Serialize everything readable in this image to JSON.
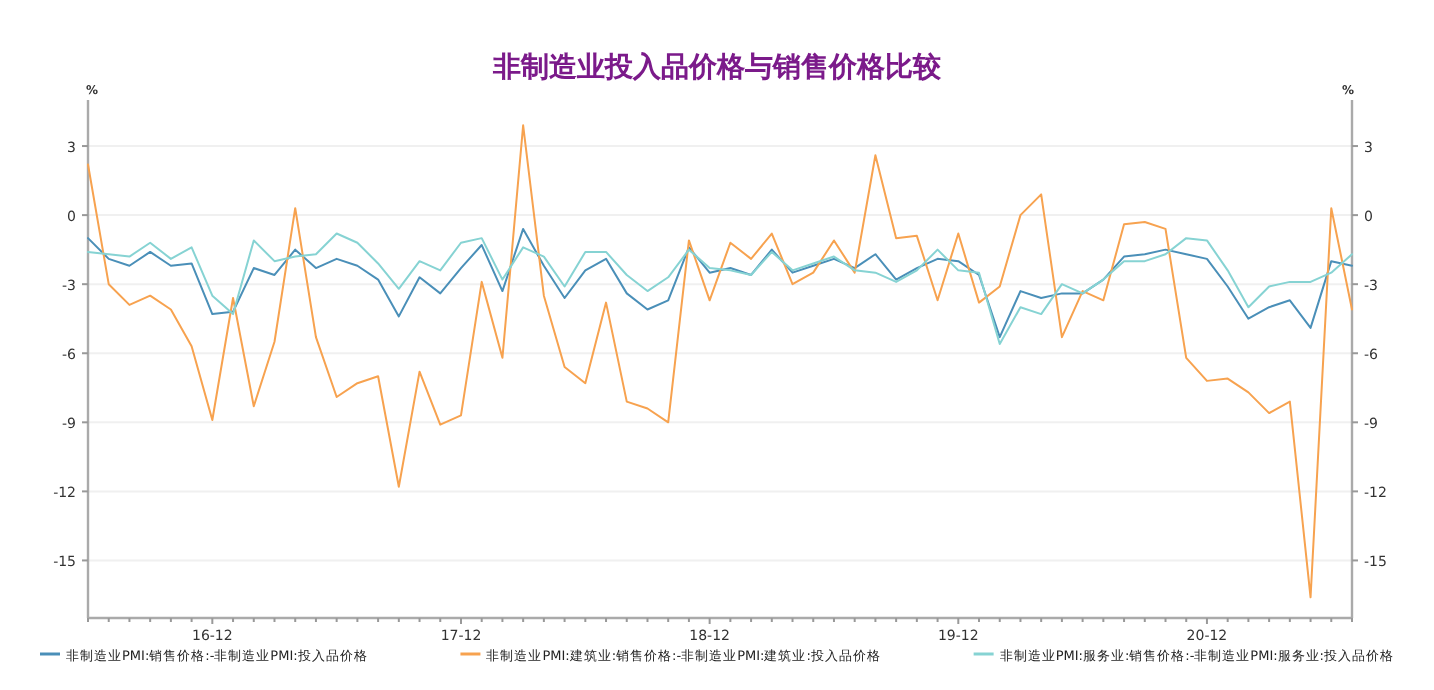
{
  "chart_data": {
    "type": "line",
    "title": "非制造业投入品价格与销售价格比较",
    "categories": [
      null,
      null,
      null,
      null,
      null,
      null,
      "16-12",
      null,
      null,
      null,
      null,
      null,
      null,
      null,
      null,
      null,
      null,
      null,
      "17-12",
      null,
      null,
      null,
      null,
      null,
      null,
      null,
      null,
      null,
      null,
      null,
      "18-12",
      null,
      null,
      null,
      null,
      null,
      null,
      null,
      null,
      null,
      null,
      null,
      "19-12",
      null,
      null,
      null,
      null,
      null,
      null,
      null,
      null,
      null,
      null,
      null,
      "20-12",
      null,
      null,
      null,
      null,
      null,
      null,
      null
    ],
    "series": [
      {
        "name": "非制造业PMI:销售价格:-非制造业PMI:投入品价格",
        "color": "#4a8fb8",
        "values": [
          -1.0,
          -1.9,
          -2.2,
          -1.6,
          -2.2,
          -2.1,
          -4.3,
          -4.2,
          -2.3,
          -2.6,
          -1.5,
          -2.3,
          -1.9,
          -2.2,
          -2.8,
          -4.4,
          -2.7,
          -3.4,
          -2.3,
          -1.3,
          -3.3,
          -0.6,
          -2.2,
          -3.6,
          -2.4,
          -1.9,
          -3.4,
          -4.1,
          -3.7,
          -1.4,
          -2.5,
          -2.3,
          -2.6,
          -1.5,
          -2.5,
          -2.2,
          -1.9,
          -2.3,
          -1.7,
          -2.8,
          -2.3,
          -1.9,
          -2.0,
          -2.6,
          -5.3,
          -3.3,
          -3.6,
          -3.4,
          -3.4,
          -2.8,
          -1.8,
          -1.7,
          -1.5,
          -1.7,
          -1.9,
          -3.1,
          -4.5,
          -4.0,
          -3.7,
          -4.9,
          -2.0,
          -2.2
        ]
      },
      {
        "name": "非制造业PMI:建筑业:销售价格:-非制造业PMI:建筑业:投入品价格",
        "color": "#f7a24f",
        "values": [
          2.2,
          -3.0,
          -3.9,
          -3.5,
          -4.1,
          -5.7,
          -8.9,
          -3.6,
          -8.3,
          -5.5,
          0.3,
          -5.3,
          -7.9,
          -7.3,
          -7.0,
          -11.8,
          -6.8,
          -9.1,
          -8.7,
          -2.9,
          -6.2,
          3.9,
          -3.5,
          -6.6,
          -7.3,
          -3.8,
          -8.1,
          -8.4,
          -9.0,
          -1.1,
          -3.7,
          -1.2,
          -1.9,
          -0.8,
          -3.0,
          -2.5,
          -1.1,
          -2.5,
          2.6,
          -1.0,
          -0.9,
          -3.7,
          -0.8,
          -3.8,
          -3.1,
          0.0,
          0.9,
          -5.3,
          -3.3,
          -3.7,
          -0.4,
          -0.3,
          -0.6,
          -6.2,
          -7.2,
          -7.1,
          -7.7,
          -8.6,
          -8.1,
          -16.6,
          0.3,
          -4.1
        ]
      },
      {
        "name": "非制造业PMI:服务业:销售价格:-非制造业PMI:服务业:投入品价格",
        "color": "#86d3d3",
        "values": [
          -1.6,
          -1.7,
          -1.8,
          -1.2,
          -1.9,
          -1.4,
          -3.5,
          -4.3,
          -1.1,
          -2.0,
          -1.8,
          -1.7,
          -0.8,
          -1.2,
          -2.1,
          -3.2,
          -2.0,
          -2.4,
          -1.2,
          -1.0,
          -2.8,
          -1.4,
          -1.8,
          -3.1,
          -1.6,
          -1.6,
          -2.6,
          -3.3,
          -2.7,
          -1.5,
          -2.3,
          -2.4,
          -2.6,
          -1.6,
          -2.4,
          -2.1,
          -1.8,
          -2.4,
          -2.5,
          -2.9,
          -2.4,
          -1.5,
          -2.4,
          -2.5,
          -5.6,
          -4.0,
          -4.3,
          -3.0,
          -3.4,
          -2.8,
          -2.0,
          -2.0,
          -1.7,
          -1.0,
          -1.1,
          -2.4,
          -4.0,
          -3.1,
          -2.9,
          -2.9,
          -2.5,
          -1.7
        ]
      }
    ],
    "ylim": [
      -17.5,
      5
    ],
    "yticks": [
      -15,
      -12,
      -9,
      -6,
      -3,
      0,
      3
    ],
    "y2lim": [
      -17.5,
      5
    ],
    "y2ticks": [
      -15,
      -12,
      -9,
      -6,
      -3,
      0,
      3
    ],
    "ylabel": "%",
    "y2label": "%",
    "grid": "y",
    "legend": "bottom",
    "marker": "none",
    "line_style": "solid"
  }
}
